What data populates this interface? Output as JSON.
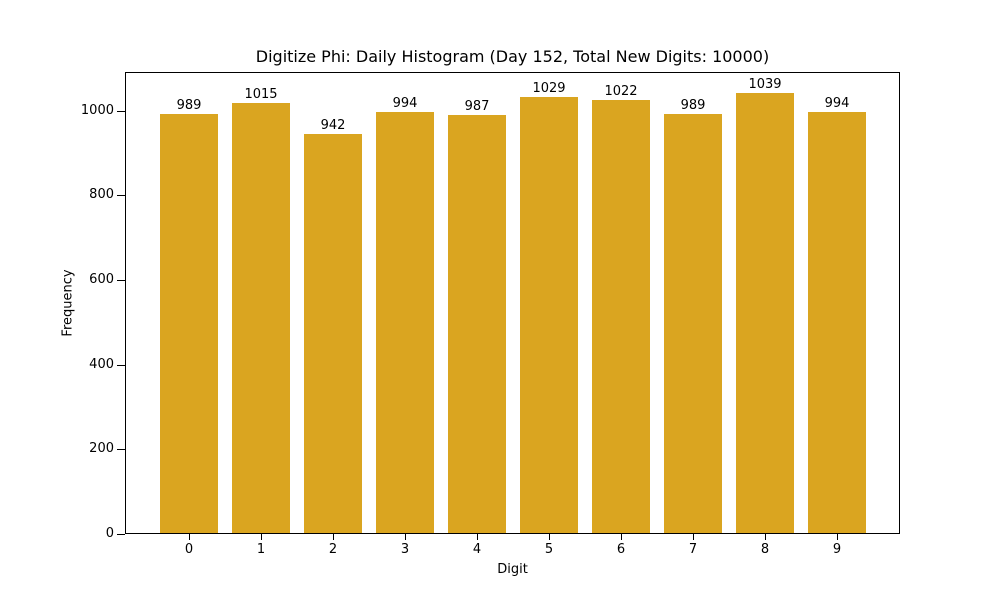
{
  "chart_data": {
    "type": "bar",
    "title": "Digitize Phi: Daily Histogram (Day 152, Total New Digits: 10000)",
    "xlabel": "Digit",
    "ylabel": "Frequency",
    "categories": [
      "0",
      "1",
      "2",
      "3",
      "4",
      "5",
      "6",
      "7",
      "8",
      "9"
    ],
    "values": [
      989,
      1015,
      942,
      994,
      987,
      1029,
      1022,
      989,
      1039,
      994
    ],
    "ylim": [
      0,
      1091
    ],
    "yticks": [
      0,
      200,
      400,
      600,
      800,
      1000
    ],
    "bar_color": "#DAA520",
    "grid": false,
    "legend": null
  }
}
